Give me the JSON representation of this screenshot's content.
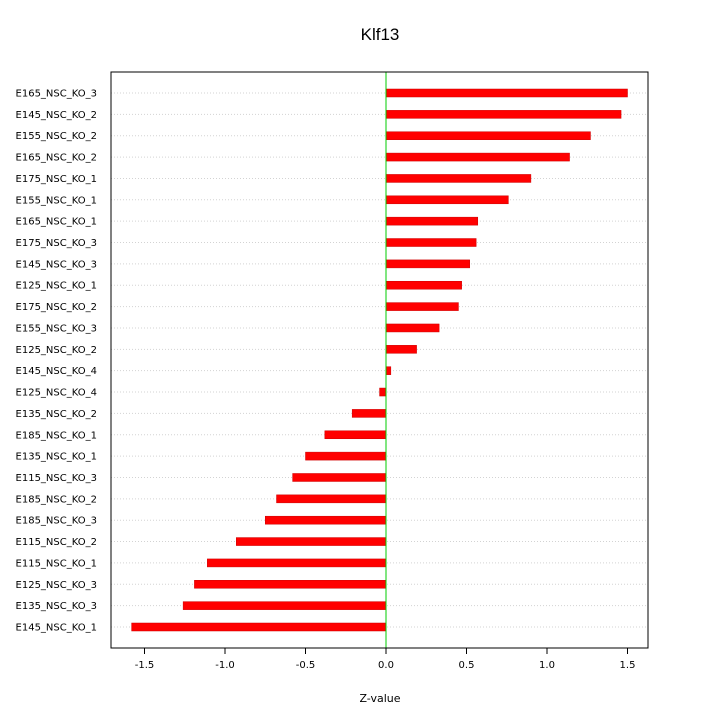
{
  "colors": {
    "bar": "#ff0000",
    "bar_edge": "#cc0000",
    "zero_line": "#00cc00",
    "grid": "#d3d3d3",
    "axis": "#000000"
  },
  "chart_data": {
    "type": "bar",
    "orientation": "horizontal",
    "title": "Klf13",
    "xlabel": "Z-value",
    "ylabel": "",
    "xlim": [
      -1.65,
      1.65
    ],
    "xticks": [
      -1.5,
      -1.0,
      -0.5,
      0.0,
      0.5,
      1.0,
      1.5
    ],
    "xtick_labels": [
      "-1.5",
      "-1.0",
      "-0.5",
      "0.0",
      "0.5",
      "1.0",
      "1.5"
    ],
    "grid": "horizontal dotted",
    "categories": [
      "E165_NSC_KO_3",
      "E145_NSC_KO_2",
      "E155_NSC_KO_2",
      "E165_NSC_KO_2",
      "E175_NSC_KO_1",
      "E155_NSC_KO_1",
      "E165_NSC_KO_1",
      "E175_NSC_KO_3",
      "E145_NSC_KO_3",
      "E125_NSC_KO_1",
      "E175_NSC_KO_2",
      "E155_NSC_KO_3",
      "E125_NSC_KO_2",
      "E145_NSC_KO_4",
      "E125_NSC_KO_4",
      "E135_NSC_KO_2",
      "E185_NSC_KO_1",
      "E135_NSC_KO_1",
      "E115_NSC_KO_3",
      "E185_NSC_KO_2",
      "E185_NSC_KO_3",
      "E115_NSC_KO_2",
      "E115_NSC_KO_1",
      "E125_NSC_KO_3",
      "E135_NSC_KO_3",
      "E145_NSC_KO_1"
    ],
    "values": [
      1.5,
      1.46,
      1.27,
      1.14,
      0.9,
      0.76,
      0.57,
      0.56,
      0.52,
      0.47,
      0.45,
      0.33,
      0.19,
      0.03,
      -0.04,
      -0.21,
      -0.38,
      -0.5,
      -0.58,
      -0.68,
      -0.75,
      -0.93,
      -1.11,
      -1.19,
      -1.26,
      -1.58
    ]
  }
}
